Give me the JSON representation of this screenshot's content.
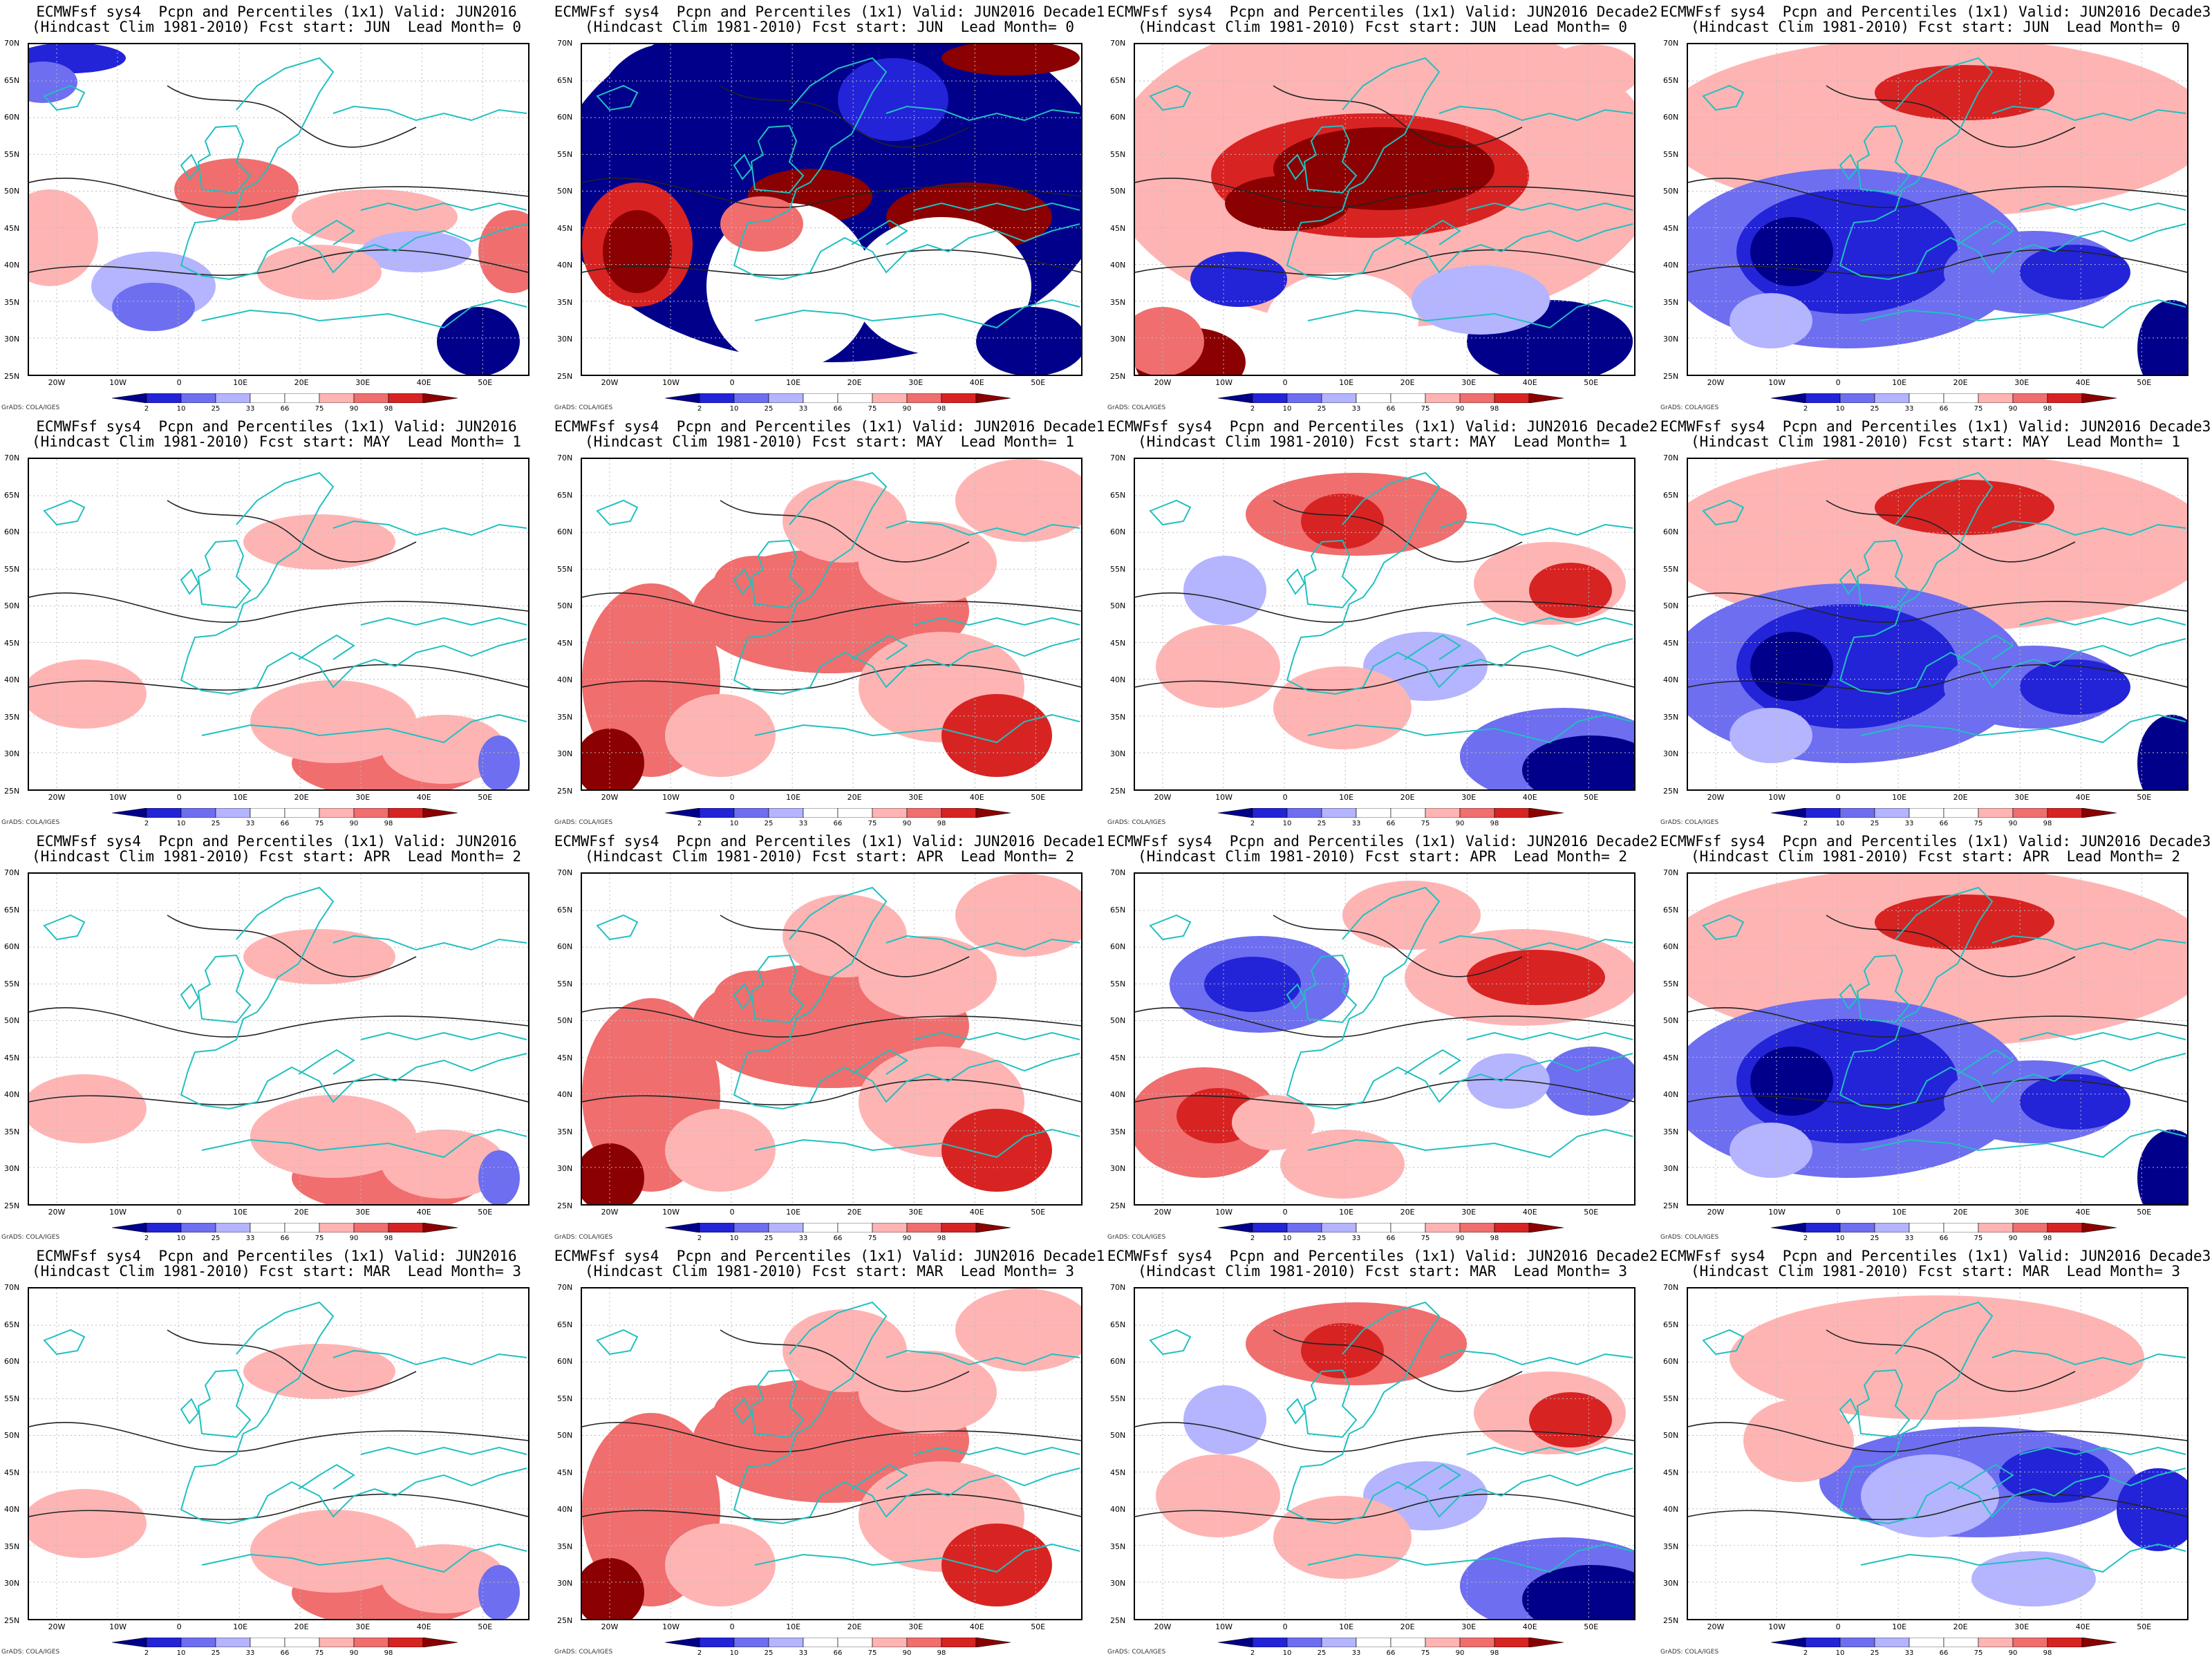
{
  "page": {
    "cols": 4,
    "rows": 4
  },
  "common": {
    "header1_prefix": "ECMWFsf sys4  Pcpn and Percentiles (1x1) Valid: JUN2016",
    "header2_prefix": "(Hindcast Clim 1981-2010) Fcst start: ",
    "lead_word": "Lead Month= ",
    "credit": "GrADS: COLA/IGES",
    "lat_labels": [
      "70N",
      "65N",
      "60N",
      "55N",
      "50N",
      "45N",
      "40N",
      "35N",
      "30N",
      "25N"
    ],
    "lon_labels": [
      "20W",
      "10W",
      "0",
      "10E",
      "20E",
      "30E",
      "40E",
      "50E"
    ],
    "colorbar": {
      "labels": [
        "2",
        "10",
        "25",
        "33",
        "66",
        "75",
        "90",
        "98"
      ],
      "colors": [
        "#00008b",
        "#2323d8",
        "#6e6ef0",
        "#b4b4ff",
        "#ffffff",
        "#ffffff",
        "#ffb4b4",
        "#f06e6e",
        "#d82323",
        "#8b0000"
      ]
    }
  },
  "panels": [
    {
      "decade": "",
      "fcst": "JUN",
      "lead": "0",
      "pattern": "mixed-hot"
    },
    {
      "decade": " Decade1",
      "fcst": "JUN",
      "lead": "0",
      "pattern": "blue-heavy"
    },
    {
      "decade": " Decade2",
      "fcst": "JUN",
      "lead": "0",
      "pattern": "red-heavy"
    },
    {
      "decade": " Decade3",
      "fcst": "JUN",
      "lead": "0",
      "pattern": "blue-south"
    },
    {
      "decade": "",
      "fcst": "MAY",
      "lead": "1",
      "pattern": "pale"
    },
    {
      "decade": " Decade1",
      "fcst": "MAY",
      "lead": "1",
      "pattern": "red-mid"
    },
    {
      "decade": " Decade2",
      "fcst": "MAY",
      "lead": "1",
      "pattern": "red-north-blue-se"
    },
    {
      "decade": " Decade3",
      "fcst": "MAY",
      "lead": "1",
      "pattern": "blue-south"
    },
    {
      "decade": "",
      "fcst": "APR",
      "lead": "2",
      "pattern": "pale"
    },
    {
      "decade": " Decade1",
      "fcst": "APR",
      "lead": "2",
      "pattern": "red-mid"
    },
    {
      "decade": " Decade2",
      "fcst": "APR",
      "lead": "2",
      "pattern": "blue-west-red-east"
    },
    {
      "decade": " Decade3",
      "fcst": "APR",
      "lead": "2",
      "pattern": "blue-south"
    },
    {
      "decade": "",
      "fcst": "MAR",
      "lead": "3",
      "pattern": "pale"
    },
    {
      "decade": " Decade1",
      "fcst": "MAR",
      "lead": "3",
      "pattern": "red-mid"
    },
    {
      "decade": " Decade2",
      "fcst": "MAR",
      "lead": "3",
      "pattern": "red-north-blue-se"
    },
    {
      "decade": " Decade3",
      "fcst": "MAR",
      "lead": "3",
      "pattern": "blue-mid"
    }
  ]
}
